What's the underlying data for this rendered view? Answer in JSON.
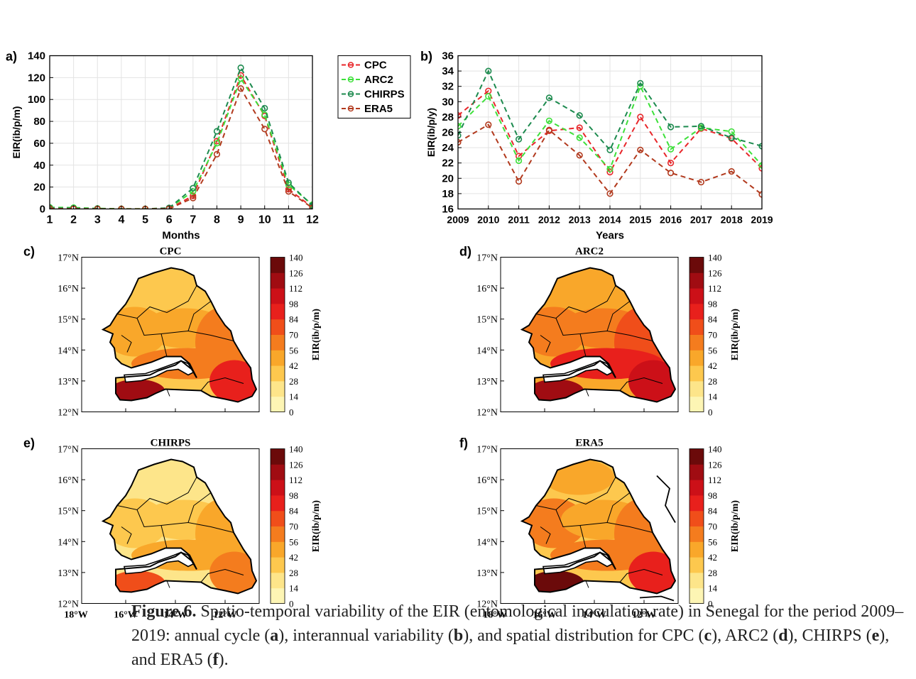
{
  "chart_data": [
    {
      "type": "line",
      "panel_letter": "a)",
      "xlabel": "Months",
      "ylabel": "EIR(ib/p/m)",
      "x": [
        1,
        2,
        3,
        4,
        5,
        6,
        7,
        8,
        9,
        10,
        11,
        12
      ],
      "xticks": [
        "1",
        "2",
        "3",
        "4",
        "5",
        "6",
        "7",
        "8",
        "9",
        "10",
        "11",
        "12"
      ],
      "xlim": [
        1,
        12
      ],
      "ylim": [
        0,
        140
      ],
      "yticks": [
        "0",
        "20",
        "40",
        "60",
        "80",
        "100",
        "120",
        "140"
      ],
      "grid": true,
      "legend": "outside-right",
      "series": [
        {
          "name": "CPC",
          "color": "#e8262a",
          "values": [
            0.5,
            0.2,
            0.1,
            0,
            0,
            0.4,
            12,
            62,
            122,
            85,
            18,
            1.5
          ]
        },
        {
          "name": "ARC2",
          "color": "#3de03a",
          "values": [
            1.5,
            1.2,
            0.5,
            0.2,
            0.2,
            0.8,
            16,
            60,
            119,
            86,
            22,
            4
          ]
        },
        {
          "name": "CHIRPS",
          "color": "#1c8a4e",
          "values": [
            1,
            0.6,
            0.3,
            0,
            0,
            1,
            19,
            71,
            129,
            92,
            24,
            3
          ]
        },
        {
          "name": "ERA5",
          "color": "#b23a1e",
          "values": [
            0.3,
            0.1,
            0,
            0,
            0,
            0.2,
            10,
            50,
            110,
            73,
            16,
            1
          ]
        }
      ]
    },
    {
      "type": "line",
      "panel_letter": "b)",
      "xlabel": "Years",
      "ylabel": "EIR(ib/p/y)",
      "x": [
        2009,
        2010,
        2011,
        2012,
        2013,
        2014,
        2015,
        2016,
        2017,
        2018,
        2019
      ],
      "xticks": [
        "2009",
        "2010",
        "2011",
        "2012",
        "2013",
        "2014",
        "2015",
        "2016",
        "2017",
        "2018",
        "2019"
      ],
      "xlim": [
        2009,
        2019
      ],
      "ylim": [
        16,
        36
      ],
      "yticks": [
        "16",
        "18",
        "20",
        "22",
        "24",
        "26",
        "28",
        "30",
        "32",
        "34",
        "36"
      ],
      "grid": true,
      "series": [
        {
          "name": "CPC",
          "color": "#e8262a",
          "values": [
            28.2,
            31.4,
            22.9,
            26.2,
            26.6,
            20.8,
            28.0,
            22.0,
            26.5,
            25.2,
            21.3
          ]
        },
        {
          "name": "ARC2",
          "color": "#3de03a",
          "values": [
            26.8,
            30.7,
            22.3,
            27.5,
            25.3,
            21.2,
            32.0,
            23.8,
            26.6,
            26.1,
            21.7
          ]
        },
        {
          "name": "CHIRPS",
          "color": "#1c8a4e",
          "values": [
            25.6,
            34.0,
            25.1,
            30.5,
            28.2,
            23.7,
            32.4,
            26.7,
            26.8,
            25.3,
            24.2
          ]
        },
        {
          "name": "ERA5",
          "color": "#b23a1e",
          "values": [
            24.7,
            27.0,
            19.6,
            26.3,
            23.0,
            18.0,
            23.7,
            20.7,
            19.5,
            20.9,
            17.9
          ]
        }
      ]
    },
    {
      "type": "heatmap",
      "maps": [
        {
          "panel_letter": "c)",
          "title": "CPC",
          "intensity": [
            2,
            2,
            3,
            3,
            4,
            4,
            6,
            8
          ]
        },
        {
          "panel_letter": "d)",
          "title": "ARC2",
          "intensity": [
            3,
            3,
            4,
            4,
            5,
            6,
            7,
            8
          ]
        },
        {
          "panel_letter": "e)",
          "title": "CHIRPS",
          "intensity": [
            1,
            1,
            2,
            2,
            3,
            3,
            4,
            5
          ]
        },
        {
          "panel_letter": "f)",
          "title": "ERA5",
          "intensity": [
            2,
            3,
            4,
            3,
            4,
            4,
            6,
            9
          ]
        }
      ],
      "lat_ticks": [
        "17°N",
        "16°N",
        "15°N",
        "14°N",
        "13°N",
        "12°N"
      ],
      "lon_ticks": [
        "18°W",
        "16°W",
        "14°W",
        "12°W"
      ],
      "colorbar_label": "EIR(ib/p/m)",
      "colorbar_ticks": [
        "0",
        "14",
        "28",
        "42",
        "56",
        "70",
        "84",
        "98",
        "112",
        "126",
        "140"
      ],
      "colorbar_colors": [
        "#fdf5b4",
        "#fde58a",
        "#fdc84e",
        "#f9a72a",
        "#f47c1e",
        "#f04e1a",
        "#e8201c",
        "#cc1018",
        "#a00c12",
        "#6b0a0a"
      ]
    }
  ],
  "caption": {
    "label": "Figure 6.",
    "segments": [
      {
        "t": " Spatio-temporal variability of the EIR (entomological inoculation rate) in Senegal for the period 2009–2019: annual cycle (",
        "b": false
      },
      {
        "t": "a",
        "b": true
      },
      {
        "t": "), interannual variability (",
        "b": false
      },
      {
        "t": "b",
        "b": true
      },
      {
        "t": "), and spatial distribution for CPC (",
        "b": false
      },
      {
        "t": "c",
        "b": true
      },
      {
        "t": "), ARC2 (",
        "b": false
      },
      {
        "t": "d",
        "b": true
      },
      {
        "t": "), CHIRPS (",
        "b": false
      },
      {
        "t": "e",
        "b": true
      },
      {
        "t": "), and ERA5 (",
        "b": false
      },
      {
        "t": "f",
        "b": true
      },
      {
        "t": ").",
        "b": false
      }
    ]
  }
}
